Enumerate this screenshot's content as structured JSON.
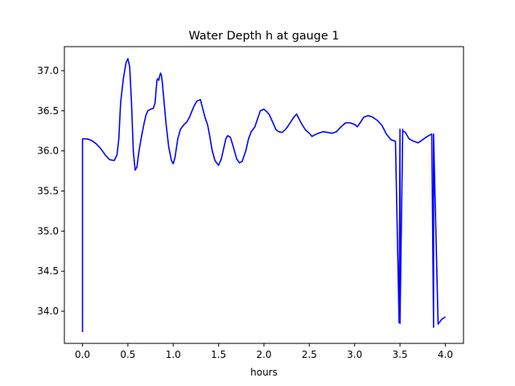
{
  "chart_data": {
    "type": "line",
    "title": "Water Depth h at gauge 1",
    "xlabel": "hours",
    "ylabel": "",
    "xlim": [
      -0.2,
      4.2
    ],
    "ylim": [
      33.6,
      37.3
    ],
    "xticks": [
      0.0,
      0.5,
      1.0,
      1.5,
      2.0,
      2.5,
      3.0,
      3.5,
      4.0
    ],
    "xtick_labels": [
      "0.0",
      "0.5",
      "1.0",
      "1.5",
      "2.0",
      "2.5",
      "3.0",
      "3.5",
      "4.0"
    ],
    "yticks": [
      34.0,
      34.5,
      35.0,
      35.5,
      36.0,
      36.5,
      37.0
    ],
    "ytick_labels": [
      "34.0",
      "34.5",
      "35.0",
      "35.5",
      "36.0",
      "36.5",
      "37.0"
    ],
    "grid": false,
    "series": [
      {
        "color": "#0000ff",
        "x": [
          0.0,
          0.0,
          0.05,
          0.1,
          0.15,
          0.2,
          0.25,
          0.3,
          0.35,
          0.38,
          0.4,
          0.42,
          0.45,
          0.48,
          0.5,
          0.52,
          0.54,
          0.56,
          0.58,
          0.6,
          0.62,
          0.65,
          0.68,
          0.7,
          0.72,
          0.75,
          0.78,
          0.8,
          0.82,
          0.83,
          0.84,
          0.85,
          0.86,
          0.87,
          0.88,
          0.9,
          0.92,
          0.95,
          0.98,
          1.0,
          1.02,
          1.05,
          1.08,
          1.1,
          1.12,
          1.15,
          1.18,
          1.2,
          1.23,
          1.26,
          1.3,
          1.32,
          1.35,
          1.38,
          1.4,
          1.43,
          1.46,
          1.5,
          1.53,
          1.56,
          1.58,
          1.6,
          1.63,
          1.66,
          1.7,
          1.73,
          1.76,
          1.8,
          1.83,
          1.86,
          1.9,
          1.93,
          1.96,
          2.0,
          2.03,
          2.06,
          2.1,
          2.13,
          2.16,
          2.2,
          2.23,
          2.26,
          2.3,
          2.33,
          2.36,
          2.4,
          2.43,
          2.46,
          2.5,
          2.53,
          2.56,
          2.6,
          2.65,
          2.7,
          2.75,
          2.8,
          2.85,
          2.9,
          2.95,
          3.0,
          3.03,
          3.06,
          3.1,
          3.15,
          3.2,
          3.25,
          3.3,
          3.35,
          3.4,
          3.45,
          3.49,
          3.5,
          3.5,
          3.53,
          3.53,
          3.56,
          3.6,
          3.65,
          3.7,
          3.75,
          3.8,
          3.85,
          3.87,
          3.87,
          3.92,
          3.96,
          4.0
        ],
        "y": [
          33.74,
          36.15,
          36.15,
          36.13,
          36.09,
          36.03,
          35.95,
          35.89,
          35.88,
          35.95,
          36.15,
          36.6,
          36.9,
          37.1,
          37.15,
          37.05,
          36.6,
          36.0,
          35.76,
          35.8,
          35.98,
          36.18,
          36.35,
          36.45,
          36.5,
          36.52,
          36.53,
          36.6,
          36.88,
          36.9,
          36.88,
          36.93,
          36.97,
          36.94,
          36.85,
          36.6,
          36.35,
          36.05,
          35.88,
          35.84,
          35.92,
          36.15,
          36.27,
          36.3,
          36.33,
          36.36,
          36.42,
          36.48,
          36.56,
          36.62,
          36.64,
          36.55,
          36.42,
          36.32,
          36.2,
          36.0,
          35.88,
          35.82,
          35.9,
          36.05,
          36.15,
          36.19,
          36.17,
          36.06,
          35.9,
          35.85,
          35.87,
          36.0,
          36.15,
          36.24,
          36.3,
          36.4,
          36.5,
          36.52,
          36.49,
          36.45,
          36.35,
          36.27,
          36.24,
          36.23,
          36.26,
          36.3,
          36.37,
          36.42,
          36.46,
          36.37,
          36.31,
          36.26,
          36.22,
          36.18,
          36.2,
          36.22,
          36.24,
          36.23,
          36.22,
          36.24,
          36.3,
          36.35,
          36.35,
          36.33,
          36.3,
          36.35,
          36.42,
          36.44,
          36.42,
          36.38,
          36.32,
          36.21,
          36.14,
          36.12,
          33.86,
          36.27,
          33.85,
          36.27,
          36.25,
          36.23,
          36.15,
          36.12,
          36.1,
          36.14,
          36.18,
          36.21,
          33.8,
          36.21,
          33.84,
          33.9,
          33.93
        ]
      }
    ]
  }
}
